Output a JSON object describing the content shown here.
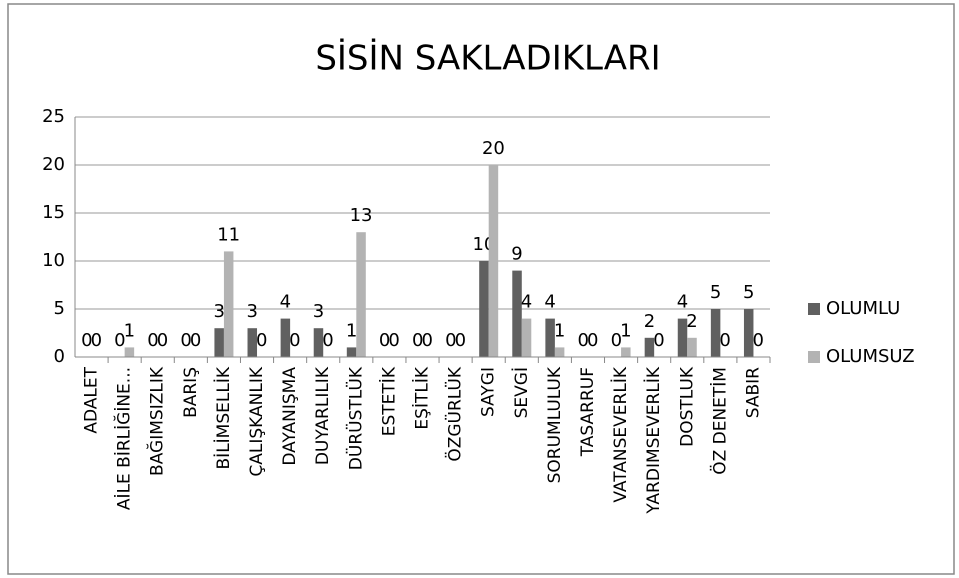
{
  "chart_data": {
    "type": "bar",
    "title": "SİSİN SAKLADIKLARI",
    "categories": [
      "ADALET",
      "AİLE BİRLİĞİNE...",
      "BAĞIMSIZLIK",
      "BARIŞ",
      "BİLİMSELLİK",
      "ÇALIŞKANLIK",
      "DAYANIŞMA",
      "DUYARLILIK",
      "DÜRÜSTLÜK",
      "ESTETİK",
      "EŞİTLİK",
      "ÖZGÜRLÜK",
      "SAYGI",
      "SEVGİ",
      "SORUMLULUK",
      "TASARRUF",
      "VATANSEVERLİK",
      "YARDIMSEVERLİK",
      "DOSTLUK",
      "ÖZ DENETİM",
      "SABIR"
    ],
    "series": [
      {
        "name": "OLUMLU",
        "color": "#606060",
        "values": [
          0,
          0,
          0,
          0,
          3,
          3,
          4,
          3,
          1,
          0,
          0,
          0,
          10,
          9,
          4,
          0,
          0,
          2,
          4,
          5,
          5
        ]
      },
      {
        "name": "OLUMSUZ",
        "color": "#b3b3b3",
        "values": [
          0,
          1,
          0,
          0,
          11,
          0,
          0,
          0,
          13,
          0,
          0,
          0,
          20,
          4,
          1,
          0,
          1,
          0,
          2,
          0,
          0
        ]
      }
    ],
    "ylim": [
      0,
      25
    ],
    "yticks": [
      0,
      5,
      10,
      15,
      20,
      25
    ],
    "grid": true,
    "legend": "right"
  }
}
